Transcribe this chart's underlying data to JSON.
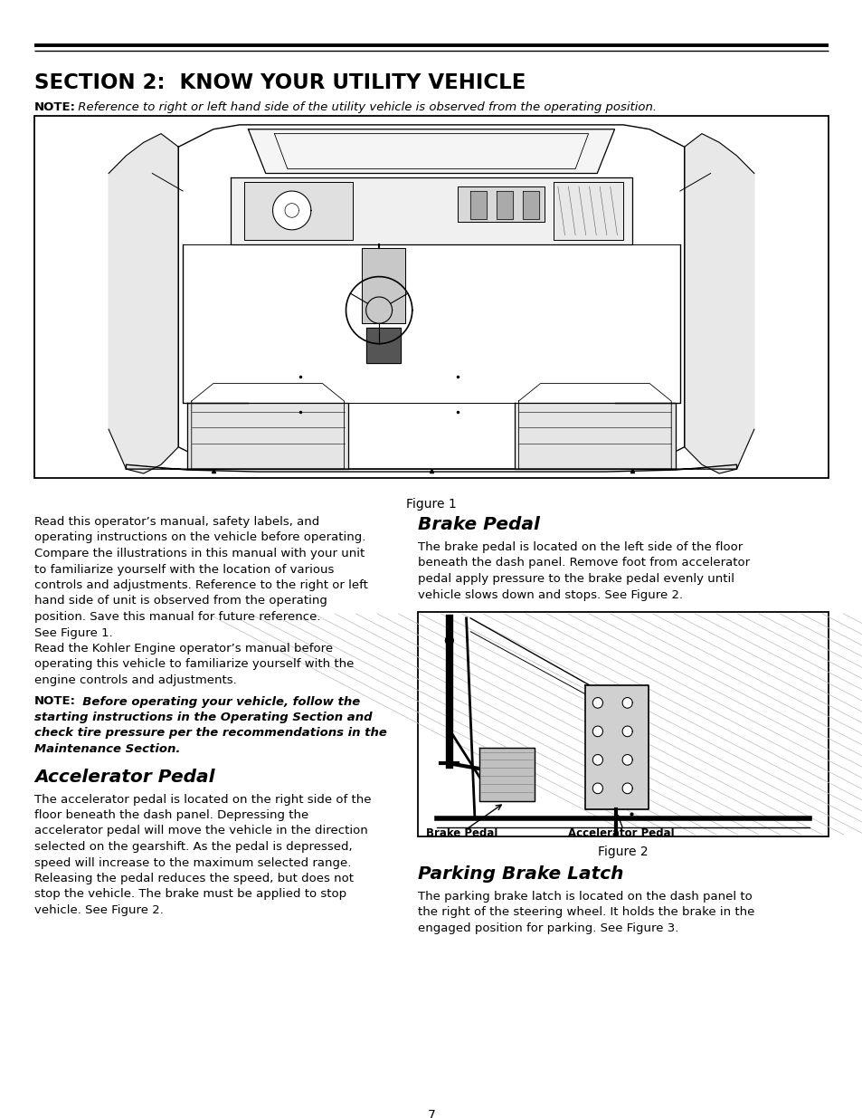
{
  "bg_color": "#ffffff",
  "section_title": "SECTION 2:  KNOW YOUR UTILITY VEHICLE",
  "figure1_caption": "Figure 1",
  "figure2_caption": "Figure 2",
  "left_col_text_1": [
    "Read this operator’s manual, safety labels, and",
    "operating instructions on the vehicle before operating.",
    "Compare the illustrations in this manual with your unit",
    "to familiarize yourself with the location of various",
    "controls and adjustments. Reference to the right or left",
    "hand side of unit is observed from the operating",
    "position. Save this manual for future reference.",
    "See Figure 1."
  ],
  "left_col_text_2": [
    "Read the Kohler Engine operator’s manual before",
    "operating this vehicle to familiarize yourself with the",
    "engine controls and adjustments."
  ],
  "note_bold_lines": [
    "NOTE:  Before operating your vehicle, follow the",
    "starting instructions in the Operating Section and",
    "check tire pressure per the recommendations in the",
    "Maintenance Section."
  ],
  "accel_heading": "Accelerator Pedal",
  "accel_text": [
    "The accelerator pedal is located on the right side of the",
    "floor beneath the dash panel. Depressing the",
    "accelerator pedal will move the vehicle in the direction",
    "selected on the gearshift. As the pedal is depressed,",
    "speed will increase to the maximum selected range.",
    "Releasing the pedal reduces the speed, but does not",
    "stop the vehicle. The brake must be applied to stop",
    "vehicle. See Figure 2."
  ],
  "brake_heading": "Brake Pedal",
  "brake_text": [
    "The brake pedal is located on the left side of the floor",
    "beneath the dash panel. Remove foot from accelerator",
    "pedal apply pressure to the brake pedal evenly until",
    "vehicle slows down and stops. See Figure 2."
  ],
  "parking_heading": "Parking Brake Latch",
  "parking_text": [
    "The parking brake latch is located on the dash panel to",
    "the right of the steering wheel. It holds the brake in the",
    "engaged position for parking. See Figure 3."
  ],
  "fig2_label_brake": "Brake Pedal",
  "fig2_label_accel": "Accelerator Pedal",
  "page_number": "7",
  "note_prefix": "NOTE:",
  "note_italic": " Reference to right or left hand side of the utility vehicle is observed from the operating position."
}
